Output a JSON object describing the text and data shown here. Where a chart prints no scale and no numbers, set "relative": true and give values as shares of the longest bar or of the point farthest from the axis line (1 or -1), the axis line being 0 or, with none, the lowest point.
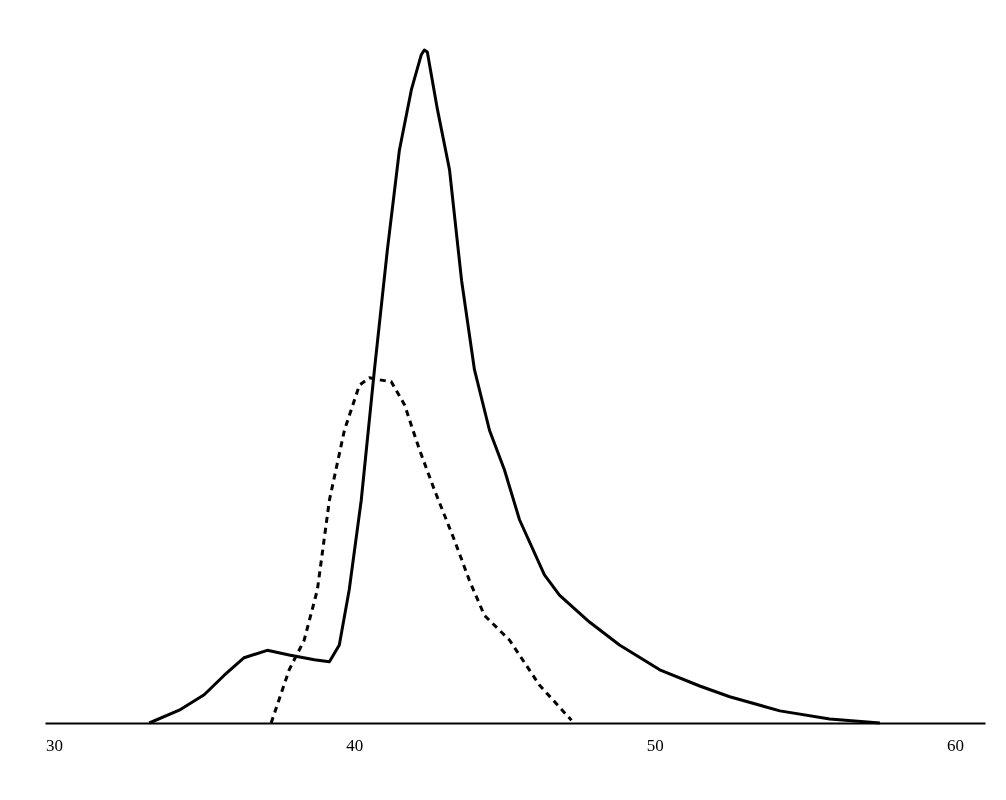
{
  "chart_data": {
    "type": "line",
    "relative": true,
    "xlim": [
      29.7,
      61
    ],
    "xticks": [
      30,
      40,
      50,
      60
    ],
    "grid": false,
    "marker": "none",
    "series": [
      {
        "color": "#000000",
        "line_style": "solid",
        "x": [
          33.17,
          34.17,
          35.0,
          35.67,
          36.33,
          37.1,
          37.83,
          38.67,
          39.17,
          39.5,
          39.83,
          40.23,
          40.67,
          41.1,
          41.5,
          41.9,
          42.23,
          42.33,
          42.43,
          42.77,
          43.17,
          43.57,
          44.0,
          44.5,
          45.0,
          45.5,
          46.33,
          46.83,
          47.83,
          48.83,
          50.17,
          51.5,
          52.5,
          54.17,
          55.83,
          57.5
        ],
        "values": [
          0,
          0.019,
          0.042,
          0.071,
          0.097,
          0.108,
          0.101,
          0.094,
          0.091,
          0.116,
          0.198,
          0.331,
          0.525,
          0.703,
          0.851,
          0.941,
          0.993,
          1,
          0.997,
          0.911,
          0.822,
          0.658,
          0.525,
          0.435,
          0.376,
          0.302,
          0.22,
          0.19,
          0.15,
          0.116,
          0.079,
          0.055,
          0.039,
          0.018,
          0.006,
          0
        ]
      },
      {
        "color": "#000000",
        "line_style": "dashed",
        "x": [
          37.23,
          37.83,
          38.33,
          38.77,
          39.17,
          39.67,
          40.17,
          40.5,
          40.83,
          41.23,
          41.67,
          42.17,
          42.67,
          43.33,
          43.83,
          44.33,
          45.17,
          46.17,
          47.23
        ],
        "values": [
          0,
          0.079,
          0.123,
          0.198,
          0.331,
          0.435,
          0.502,
          0.513,
          0.51,
          0.507,
          0.473,
          0.406,
          0.346,
          0.272,
          0.212,
          0.16,
          0.123,
          0.056,
          0.004
        ]
      }
    ]
  }
}
